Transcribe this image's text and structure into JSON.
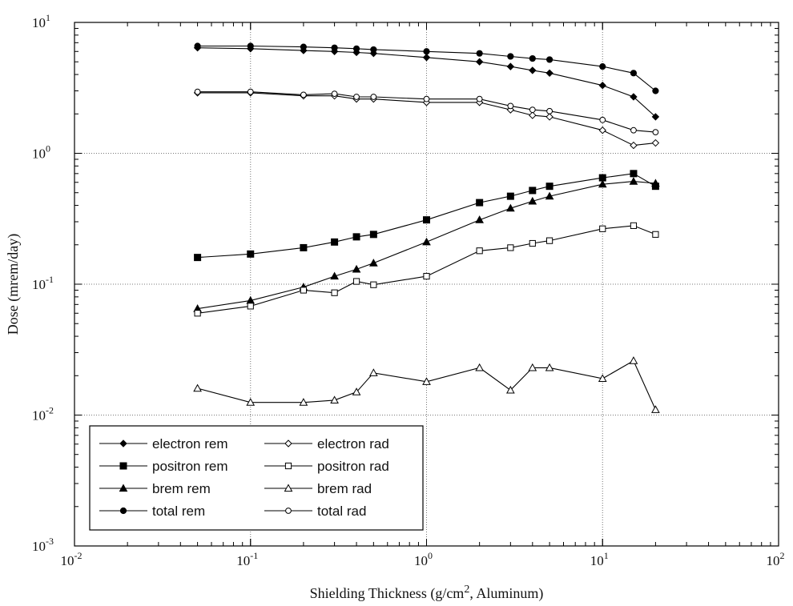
{
  "chart_data": {
    "type": "line",
    "xlabel_prefix": "Shielding Thickness (g/cm",
    "xlabel_sup": "2",
    "xlabel_suffix": ", Aluminum)",
    "ylabel": "Dose (mrem/day)",
    "xscale": "log",
    "yscale": "log",
    "xlim": [
      0.01,
      100
    ],
    "ylim": [
      0.001,
      10
    ],
    "grid": true,
    "legend_position": "bottom-left",
    "x_ticks": [
      {
        "base": "10",
        "exp": "-2",
        "value": 0.01
      },
      {
        "base": "10",
        "exp": "-1",
        "value": 0.1
      },
      {
        "base": "10",
        "exp": "0",
        "value": 1
      },
      {
        "base": "10",
        "exp": "1",
        "value": 10
      },
      {
        "base": "10",
        "exp": "2",
        "value": 100
      }
    ],
    "y_ticks": [
      {
        "base": "10",
        "exp": "-3",
        "value": 0.001
      },
      {
        "base": "10",
        "exp": "-2",
        "value": 0.01
      },
      {
        "base": "10",
        "exp": "-1",
        "value": 0.1
      },
      {
        "base": "10",
        "exp": "0",
        "value": 1
      },
      {
        "base": "10",
        "exp": "1",
        "value": 10
      }
    ],
    "series": [
      {
        "name": "electron rem",
        "marker": "diamond-filled",
        "x": [
          0.05,
          0.1,
          0.2,
          0.3,
          0.4,
          0.5,
          1,
          2,
          3,
          4,
          5,
          10,
          15,
          20
        ],
        "y": [
          6.4,
          6.3,
          6.1,
          6.0,
          5.9,
          5.8,
          5.4,
          5.0,
          4.6,
          4.3,
          4.1,
          3.3,
          2.7,
          1.9
        ]
      },
      {
        "name": "positron rem",
        "marker": "square-filled",
        "x": [
          0.05,
          0.1,
          0.2,
          0.3,
          0.4,
          0.5,
          1,
          2,
          3,
          4,
          5,
          10,
          15,
          20
        ],
        "y": [
          0.16,
          0.17,
          0.19,
          0.21,
          0.23,
          0.24,
          0.31,
          0.42,
          0.47,
          0.52,
          0.56,
          0.65,
          0.7,
          0.56
        ]
      },
      {
        "name": "brem rem",
        "marker": "triangle-filled",
        "x": [
          0.05,
          0.1,
          0.2,
          0.3,
          0.4,
          0.5,
          1,
          2,
          3,
          4,
          5,
          10,
          15,
          20
        ],
        "y": [
          0.065,
          0.075,
          0.095,
          0.115,
          0.13,
          0.145,
          0.21,
          0.31,
          0.38,
          0.43,
          0.47,
          0.58,
          0.61,
          0.59
        ]
      },
      {
        "name": "total rem",
        "marker": "circle-filled",
        "x": [
          0.05,
          0.1,
          0.2,
          0.3,
          0.4,
          0.5,
          1,
          2,
          3,
          4,
          5,
          10,
          15,
          20
        ],
        "y": [
          6.6,
          6.6,
          6.5,
          6.4,
          6.3,
          6.2,
          6.0,
          5.8,
          5.5,
          5.3,
          5.2,
          4.6,
          4.1,
          3.0
        ]
      },
      {
        "name": "electron rad",
        "marker": "diamond-open",
        "x": [
          0.05,
          0.1,
          0.2,
          0.3,
          0.4,
          0.5,
          1,
          2,
          3,
          4,
          5,
          10,
          15,
          20
        ],
        "y": [
          2.9,
          2.9,
          2.75,
          2.75,
          2.6,
          2.6,
          2.45,
          2.45,
          2.15,
          1.95,
          1.9,
          1.5,
          1.15,
          1.2
        ]
      },
      {
        "name": "positron rad",
        "marker": "square-open",
        "x": [
          0.05,
          0.1,
          0.2,
          0.3,
          0.4,
          0.5,
          1,
          2,
          3,
          4,
          5,
          10,
          15,
          20
        ],
        "y": [
          0.06,
          0.068,
          0.09,
          0.086,
          0.105,
          0.099,
          0.115,
          0.18,
          0.19,
          0.205,
          0.215,
          0.265,
          0.28,
          0.24
        ]
      },
      {
        "name": "brem rad",
        "marker": "triangle-open",
        "x": [
          0.05,
          0.1,
          0.2,
          0.3,
          0.4,
          0.5,
          1,
          2,
          3,
          4,
          5,
          10,
          15,
          20
        ],
        "y": [
          0.016,
          0.0125,
          0.0125,
          0.013,
          0.015,
          0.021,
          0.018,
          0.023,
          0.0155,
          0.023,
          0.023,
          0.019,
          0.026,
          0.011
        ]
      },
      {
        "name": "total rad",
        "marker": "circle-open",
        "x": [
          0.05,
          0.1,
          0.2,
          0.3,
          0.4,
          0.5,
          1,
          2,
          3,
          4,
          5,
          10,
          15,
          20
        ],
        "y": [
          2.95,
          2.95,
          2.8,
          2.85,
          2.7,
          2.7,
          2.6,
          2.6,
          2.3,
          2.15,
          2.1,
          1.8,
          1.5,
          1.45
        ]
      }
    ]
  }
}
